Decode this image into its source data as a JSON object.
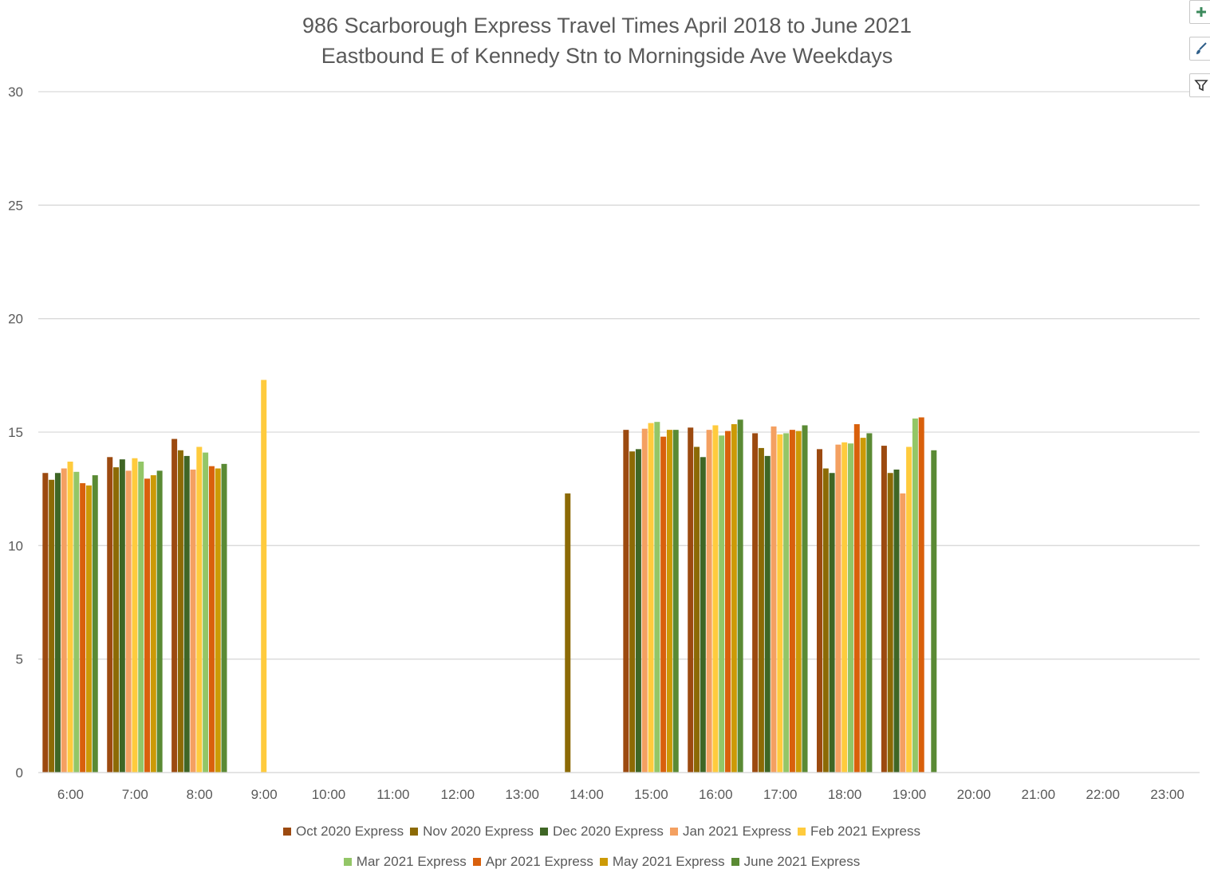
{
  "chart_data": {
    "type": "bar",
    "title": "986 Scarborough Express Travel Times April 2018 to June 2021",
    "subtitle": "Eastbound E of Kennedy Stn to Morningside Ave Weekdays",
    "xlabel": "",
    "ylabel": "",
    "ylim": [
      0,
      30
    ],
    "yticks": [
      "0",
      "5",
      "10",
      "15",
      "20",
      "25",
      "30"
    ],
    "grid": true,
    "legend_position": "bottom",
    "categories": [
      "6:00",
      "7:00",
      "8:00",
      "9:00",
      "10:00",
      "11:00",
      "12:00",
      "13:00",
      "14:00",
      "15:00",
      "16:00",
      "17:00",
      "18:00",
      "19:00",
      "20:00",
      "21:00",
      "22:00",
      "23:00"
    ],
    "series": [
      {
        "name": "Oct 2020 Express",
        "color": "#9C4A10",
        "values": [
          13.2,
          13.9,
          14.7,
          null,
          null,
          null,
          null,
          null,
          null,
          15.1,
          15.2,
          14.95,
          14.25,
          14.4,
          null,
          null,
          null,
          null
        ]
      },
      {
        "name": "Nov 2020 Express",
        "color": "#8C6A05",
        "values": [
          12.9,
          13.45,
          14.2,
          null,
          null,
          null,
          null,
          null,
          12.3,
          14.15,
          14.35,
          14.3,
          13.4,
          13.2,
          null,
          null,
          null,
          null
        ]
      },
      {
        "name": "Dec 2020 Express",
        "color": "#3F6625",
        "values": [
          13.2,
          13.8,
          13.95,
          null,
          null,
          null,
          null,
          null,
          null,
          14.25,
          13.9,
          13.95,
          13.2,
          13.35,
          null,
          null,
          null,
          null
        ]
      },
      {
        "name": "Jan 2021 Express",
        "color": "#F4A061",
        "values": [
          13.4,
          13.3,
          13.35,
          null,
          null,
          null,
          null,
          null,
          null,
          15.15,
          15.1,
          15.25,
          14.45,
          12.3,
          null,
          null,
          null,
          null
        ]
      },
      {
        "name": "Feb 2021 Express",
        "color": "#FFCB3D",
        "values": [
          13.7,
          13.85,
          14.35,
          17.3,
          null,
          null,
          null,
          null,
          null,
          15.4,
          15.3,
          14.9,
          14.55,
          14.35,
          null,
          null,
          null,
          null
        ]
      },
      {
        "name": "Mar 2021 Express",
        "color": "#93C667",
        "values": [
          13.25,
          13.7,
          14.1,
          null,
          null,
          null,
          null,
          null,
          null,
          15.45,
          14.85,
          14.95,
          14.5,
          15.6,
          null,
          null,
          null,
          null
        ]
      },
      {
        "name": "Apr 2021 Express",
        "color": "#D9600C",
        "values": [
          12.75,
          12.95,
          13.5,
          null,
          null,
          null,
          null,
          null,
          null,
          14.8,
          15.05,
          15.1,
          15.35,
          15.65,
          null,
          null,
          null,
          null
        ]
      },
      {
        "name": "May 2021 Express",
        "color": "#CC9A06",
        "values": [
          12.65,
          13.1,
          13.4,
          null,
          null,
          null,
          null,
          null,
          null,
          15.1,
          15.35,
          15.05,
          14.75,
          null,
          null,
          null,
          null,
          null
        ]
      },
      {
        "name": "June 2021 Express",
        "color": "#5A8A34",
        "values": [
          13.1,
          13.3,
          13.6,
          null,
          null,
          null,
          null,
          null,
          null,
          15.1,
          15.55,
          15.3,
          14.95,
          14.2,
          null,
          null,
          null,
          null
        ]
      }
    ]
  },
  "toolbar": {
    "icons": [
      "plus-icon",
      "brush-icon",
      "filter-icon"
    ]
  }
}
